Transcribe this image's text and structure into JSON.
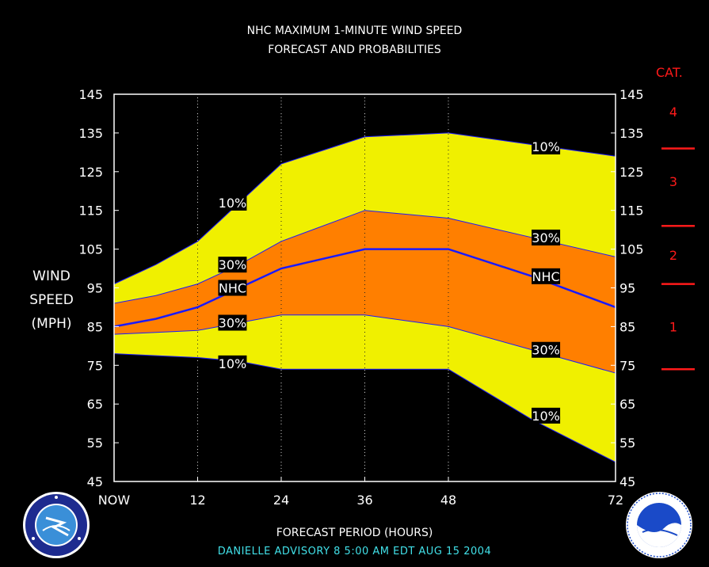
{
  "title_line1": "NHC MAXIMUM 1-MINUTE WIND SPEED",
  "title_line2": "FORECAST AND PROBABILITIES",
  "y_label": [
    "WIND",
    "SPEED",
    "(MPH)"
  ],
  "x_title": "FORECAST PERIOD (HOURS)",
  "footer": "DANIELLE   ADVISORY  8 5:00  AM  EDT  AUG 15  2004",
  "category_header": "CAT.",
  "colors": {
    "outer_band": "#f0f000",
    "inner_band": "#ff7f00",
    "nhc_line": "#1a1aff",
    "category": "#ff1a1a",
    "footer": "#41e0e8"
  },
  "chart_data": {
    "type": "area",
    "title": "NHC MAXIMUM 1-MINUTE WIND SPEED FORECAST AND PROBABILITIES",
    "xlabel": "FORECAST PERIOD (HOURS)",
    "ylabel": "WIND SPEED (MPH)",
    "xlim": [
      0,
      72
    ],
    "ylim": [
      45,
      145
    ],
    "x_ticks": [
      0,
      12,
      24,
      36,
      48,
      72
    ],
    "x_tick_labels": [
      "NOW",
      "12",
      "24",
      "36",
      "48",
      "72"
    ],
    "y_ticks": [
      45,
      55,
      65,
      75,
      85,
      95,
      105,
      115,
      125,
      135,
      145
    ],
    "x": [
      0,
      6,
      12,
      18,
      24,
      36,
      48,
      60,
      72
    ],
    "series": [
      {
        "name": "10%",
        "values": [
          96,
          101,
          107,
          117,
          127,
          134,
          135,
          132,
          129
        ]
      },
      {
        "name": "30%",
        "values": [
          91,
          93,
          96,
          101,
          107,
          115,
          113,
          108,
          103
        ]
      },
      {
        "name": "NHC",
        "values": [
          85,
          87,
          90,
          95,
          100,
          105,
          105,
          98,
          90
        ]
      },
      {
        "name": "30%",
        "values": [
          83,
          83.5,
          84,
          86,
          88,
          88,
          85,
          79,
          73
        ]
      },
      {
        "name": "10%",
        "values": [
          78,
          77.5,
          77,
          76,
          74,
          74,
          74,
          61,
          50
        ]
      }
    ],
    "label_positions": [
      {
        "text": "10%",
        "x": 17,
        "y": 117
      },
      {
        "text": "30%",
        "x": 17,
        "y": 101
      },
      {
        "text": "NHC",
        "x": 17,
        "y": 95
      },
      {
        "text": "30%",
        "x": 17,
        "y": 86
      },
      {
        "text": "10%",
        "x": 17,
        "y": 75.5
      },
      {
        "text": "10%",
        "x": 62,
        "y": 131.5
      },
      {
        "text": "30%",
        "x": 62,
        "y": 108
      },
      {
        "text": "NHC",
        "x": 62,
        "y": 98
      },
      {
        "text": "30%",
        "x": 62,
        "y": 79
      },
      {
        "text": "10%",
        "x": 62,
        "y": 62
      }
    ],
    "categories": [
      {
        "label": "4",
        "center": 140.5
      },
      {
        "label": "3",
        "center": 122.5
      },
      {
        "label": "2",
        "center": 103.5
      },
      {
        "label": "1",
        "center": 85
      }
    ],
    "category_thresholds": [
      74,
      96,
      111,
      131
    ]
  }
}
